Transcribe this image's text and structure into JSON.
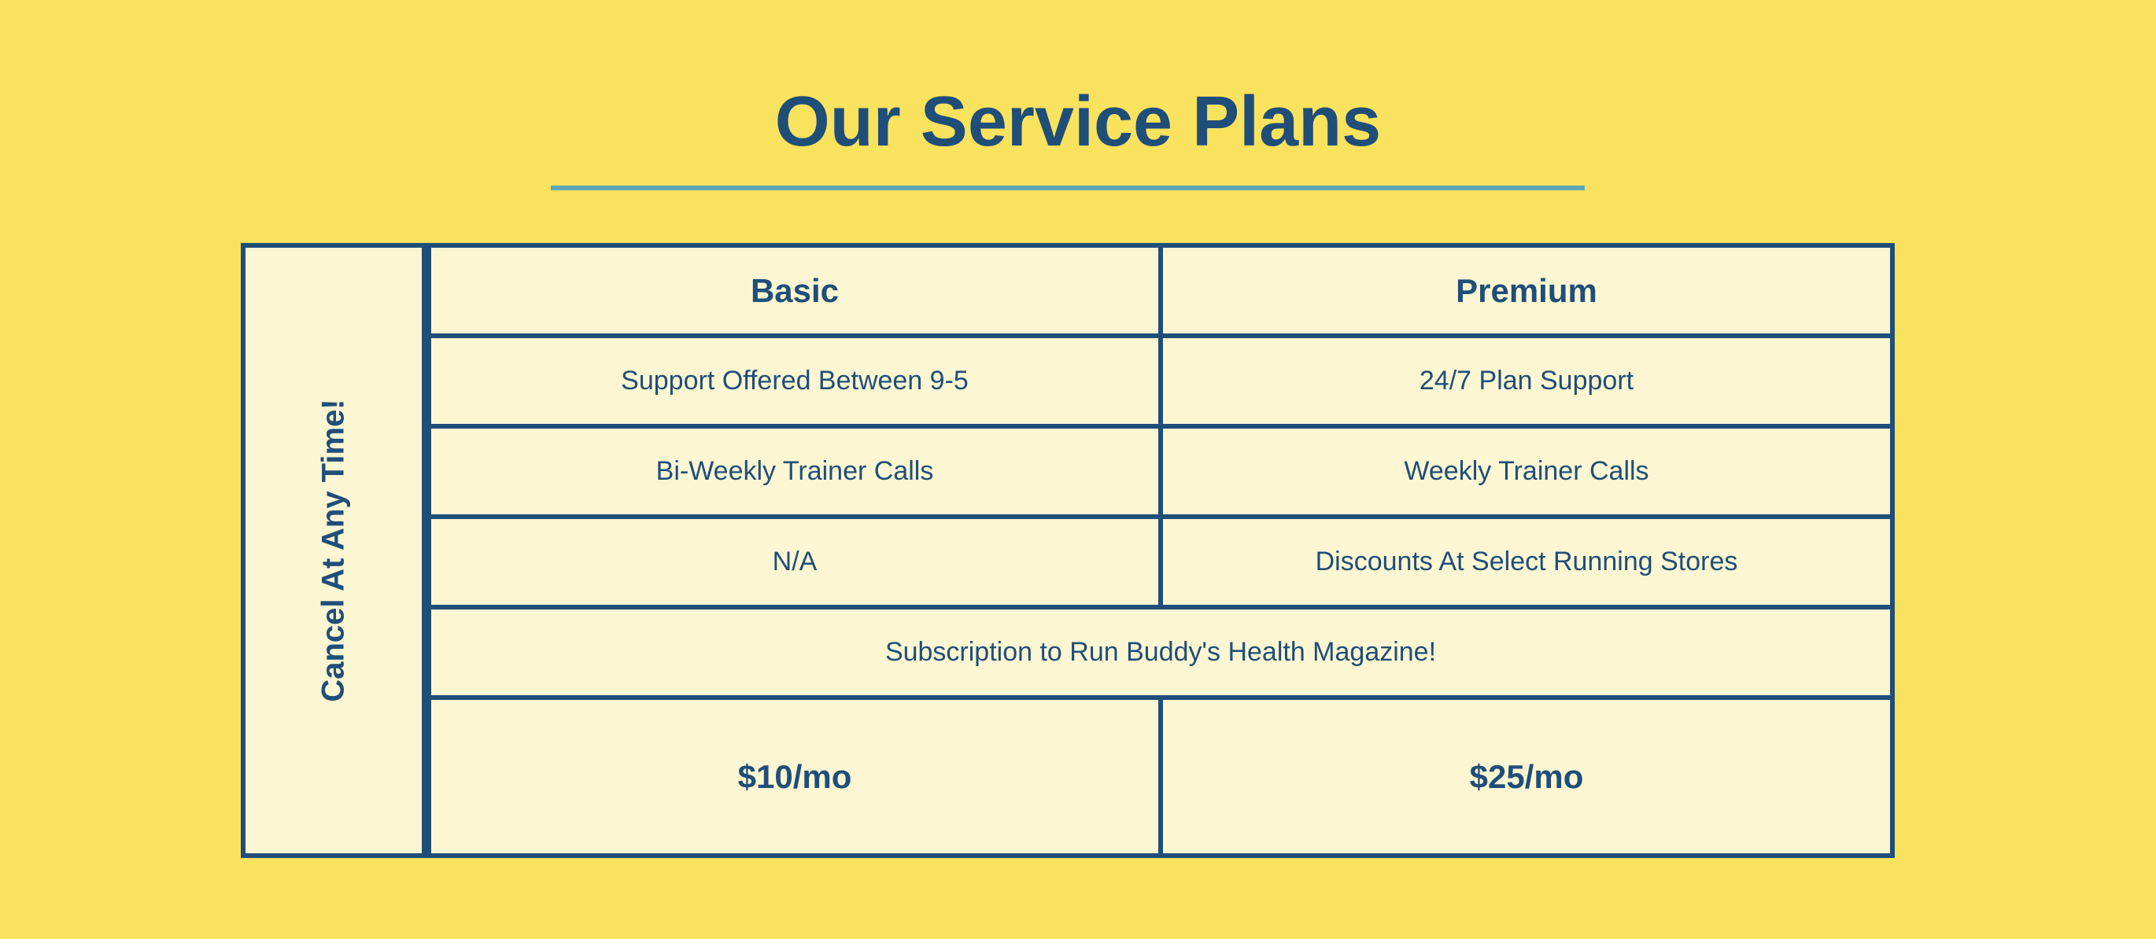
{
  "page": {
    "title": "Our Service Plans"
  },
  "table": {
    "side_label": "Cancel At Any Time!",
    "headers": [
      "Basic",
      "Premium"
    ],
    "rows": [
      [
        "Support Offered Between 9-5",
        "24/7 Plan Support"
      ],
      [
        "Bi-Weekly Trainer Calls",
        "Weekly Trainer Calls"
      ],
      [
        "N/A",
        "Discounts At Select Running Stores"
      ]
    ],
    "shared_row": "Subscription to Run Buddy's Health Magazine!",
    "prices": [
      "$10/mo",
      "$25/mo"
    ]
  },
  "colors": {
    "background": "#f9e25e",
    "text": "#1f4e79",
    "table_fill": "#fcf6d2",
    "divider": "#5ea6b8"
  }
}
